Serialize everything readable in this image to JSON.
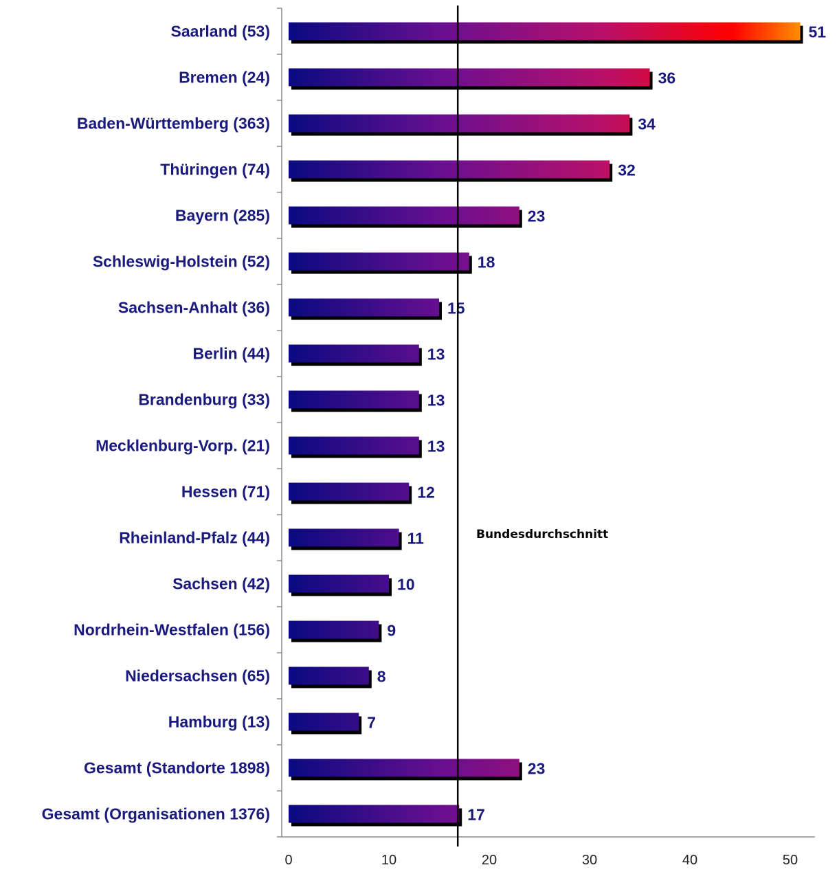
{
  "chart_data": {
    "type": "bar",
    "orientation": "horizontal",
    "categories": [
      "Saarland (53)",
      "Bremen (24)",
      "Baden-Württemberg (363)",
      "Thüringen (74)",
      "Bayern (285)",
      "Schleswig-Holstein (52)",
      "Sachsen-Anhalt (36)",
      "Berlin (44)",
      "Brandenburg (33)",
      "Mecklenburg-Vorp. (21)",
      "Hessen (71)",
      "Rheinland-Pfalz (44)",
      "Sachsen (42)",
      "Nordrhein-Westfalen (156)",
      "Niedersachsen (65)",
      "Hamburg (13)",
      "Gesamt (Standorte 1898)",
      "Gesamt (Organisationen 1376)"
    ],
    "values": [
      51,
      36,
      34,
      32,
      23,
      18,
      15,
      13,
      13,
      13,
      12,
      11,
      10,
      9,
      8,
      7,
      23,
      17
    ],
    "value_labels": [
      "51",
      "36",
      "34",
      "32",
      "23",
      "18",
      "15",
      "13",
      "13",
      "13",
      "12",
      "11",
      "10",
      "9",
      "8",
      "7",
      "23",
      "17"
    ],
    "xlim": [
      0,
      52
    ],
    "x_ticks": [
      0,
      10,
      20,
      30,
      40,
      50
    ],
    "x_tick_labels": [
      "0",
      "10",
      "20",
      "30",
      "40",
      "50"
    ],
    "reference_line": {
      "value": 17,
      "label": "Bundesdurchschnitt"
    },
    "colors": {
      "gradient_start": "#0a0a80",
      "gradient_mid1": "#6a0f90",
      "gradient_mid2": "#b8106a",
      "gradient_mid3": "#ff0000",
      "gradient_end": "#ffa500",
      "shadow": "#000000",
      "label": "#1a1a7e"
    },
    "grid": false
  }
}
